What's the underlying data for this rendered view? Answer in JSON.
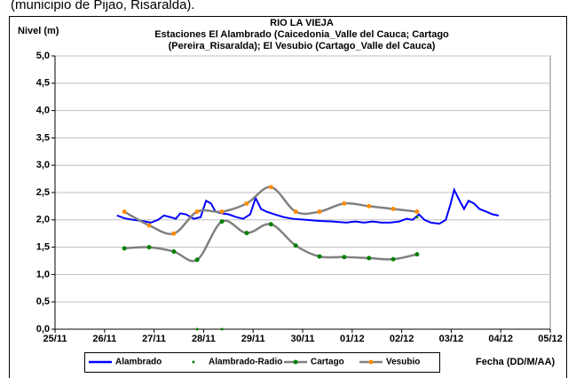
{
  "header_text": "(municipio de Pijao, Risaralda).",
  "chart_data": {
    "type": "line",
    "title": [
      "RIO LA VIEJA",
      "Estaciones El Alambrado (Caicedonia_Valle del Cauca; Cartago",
      "(Pereira_Risaralda);  El Vesubio (Cartago_Valle del Cauca)"
    ],
    "y_label": "Nivel (m)",
    "x_label": "Fecha (DD/M/AA)",
    "xlim": [
      0,
      10
    ],
    "xticks": [
      {
        "value": 0,
        "label": "25/11"
      },
      {
        "value": 1,
        "label": "26/11"
      },
      {
        "value": 2,
        "label": "27/11"
      },
      {
        "value": 3,
        "label": "28/11"
      },
      {
        "value": 4,
        "label": "29/11"
      },
      {
        "value": 5,
        "label": "30/11"
      },
      {
        "value": 6,
        "label": "01/12"
      },
      {
        "value": 7,
        "label": "02/12"
      },
      {
        "value": 8,
        "label": "03/12"
      },
      {
        "value": 9,
        "label": "04/12"
      },
      {
        "value": 10,
        "label": "05/12"
      }
    ],
    "ylim": [
      0,
      5
    ],
    "yticks": [
      {
        "value": 0,
        "label": "0,0"
      },
      {
        "value": 0.5,
        "label": "0,5"
      },
      {
        "value": 1,
        "label": "1,0"
      },
      {
        "value": 1.5,
        "label": "1,5"
      },
      {
        "value": 2,
        "label": "2,0"
      },
      {
        "value": 2.5,
        "label": "2,5"
      },
      {
        "value": 3,
        "label": "3,0"
      },
      {
        "value": 3.5,
        "label": "3,5"
      },
      {
        "value": 4,
        "label": "4,0"
      },
      {
        "value": 4.5,
        "label": "4,5"
      },
      {
        "value": 5,
        "label": "5,0"
      }
    ],
    "grid": true,
    "series": [
      {
        "name": "Alambrado",
        "color": "#0000ff",
        "marker_color": null,
        "line": true,
        "smooth": false,
        "x": [
          1.25,
          1.4,
          1.58,
          1.76,
          1.94,
          2.08,
          2.2,
          2.33,
          2.44,
          2.53,
          2.65,
          2.8,
          2.94,
          3.05,
          3.15,
          3.24,
          3.37,
          3.51,
          3.66,
          3.8,
          3.94,
          4.05,
          4.16,
          4.27,
          4.44,
          4.62,
          4.8,
          5.07,
          5.34,
          5.61,
          5.88,
          6.06,
          6.24,
          6.42,
          6.59,
          6.77,
          6.95,
          7.1,
          7.22,
          7.35,
          7.46,
          7.59,
          7.76,
          7.89,
          7.99,
          8.06,
          8.17,
          8.26,
          8.35,
          8.46,
          8.57,
          8.71,
          8.84,
          8.96
        ],
        "values": [
          2.08,
          2.03,
          2.0,
          1.98,
          1.95,
          2.0,
          2.08,
          2.05,
          2.02,
          2.12,
          2.1,
          2.02,
          2.05,
          2.35,
          2.3,
          2.15,
          2.12,
          2.1,
          2.05,
          2.02,
          2.1,
          2.4,
          2.2,
          2.15,
          2.1,
          2.05,
          2.02,
          2.0,
          1.98,
          1.97,
          1.95,
          1.97,
          1.95,
          1.97,
          1.95,
          1.95,
          1.97,
          2.02,
          2.0,
          2.1,
          2.0,
          1.95,
          1.93,
          2.0,
          2.3,
          2.55,
          2.35,
          2.2,
          2.35,
          2.3,
          2.2,
          2.15,
          2.1,
          2.08
        ]
      },
      {
        "name": "Alambrado-Radio",
        "color": "#008000",
        "marker_color": "#008000",
        "line": false,
        "smooth": false,
        "x": [
          2.87,
          3.37,
          7.31
        ],
        "values": [
          0,
          0,
          2.05
        ]
      },
      {
        "name": "Cartago",
        "color": "#808080",
        "marker_color": "#008000",
        "line": true,
        "smooth": true,
        "x": [
          1.4,
          1.9,
          2.4,
          2.87,
          3.37,
          3.87,
          4.36,
          4.86,
          5.34,
          5.84,
          6.34,
          6.83,
          7.31
        ],
        "values": [
          1.48,
          1.5,
          1.42,
          1.27,
          1.97,
          1.76,
          1.92,
          1.53,
          1.33,
          1.32,
          1.3,
          1.28,
          1.37
        ]
      },
      {
        "name": "Vesubio",
        "color": "#808080",
        "marker_color": "#ff8c00",
        "line": true,
        "smooth": true,
        "x": [
          1.4,
          1.9,
          2.4,
          2.87,
          3.37,
          3.87,
          4.36,
          4.86,
          5.34,
          5.84,
          6.34,
          6.83,
          7.31
        ],
        "values": [
          2.15,
          1.9,
          1.75,
          2.15,
          2.15,
          2.3,
          2.6,
          2.15,
          2.15,
          2.3,
          2.25,
          2.2,
          2.15
        ]
      }
    ]
  }
}
